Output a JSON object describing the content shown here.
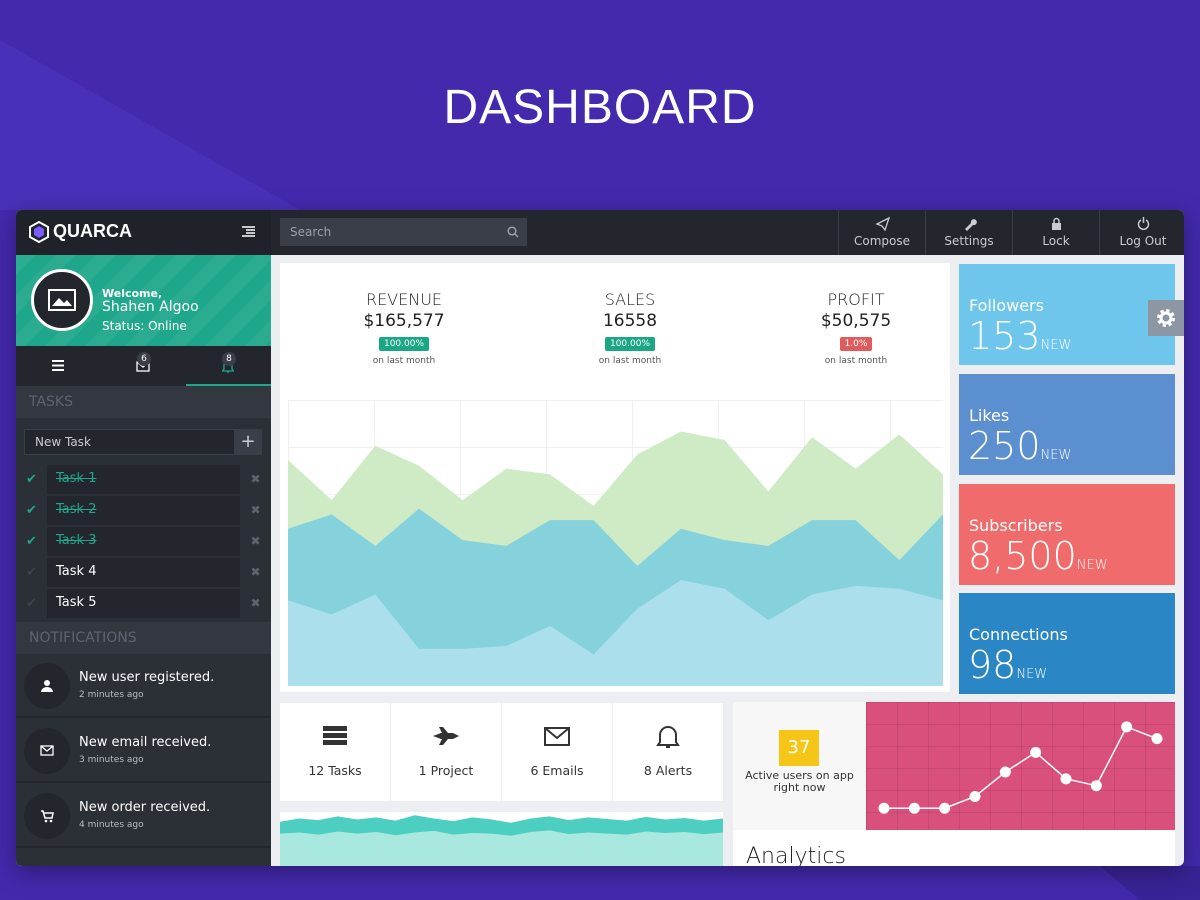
{
  "header": {
    "title": "DASHBOARD"
  },
  "brand": "QUARCA",
  "search": "Search",
  "toolbar": [
    "Compose",
    "Settings",
    "Lock",
    "Log Out"
  ],
  "profile": {
    "welcome": "Welcome,",
    "name": "Shahen Algoo",
    "status": "Status: Online"
  },
  "tab_badges": [
    "6",
    "8"
  ],
  "tasks": {
    "title": "TASKS",
    "input": "New Task",
    "add": "+",
    "remove": "✖",
    "check": "✔",
    "items": [
      {
        "label": "Task 1",
        "done": true
      },
      {
        "label": "Task 2",
        "done": true
      },
      {
        "label": "Task 3",
        "done": true
      },
      {
        "label": "Task 4",
        "done": false
      },
      {
        "label": "Task 5",
        "done": false
      }
    ]
  },
  "notifications": {
    "title": "NOTIFICATIONS",
    "items": [
      {
        "text": "New user registered.",
        "time": "2 minutes ago"
      },
      {
        "text": "New email received.",
        "time": "3 minutes ago"
      },
      {
        "text": "New order received.",
        "time": "4 minutes ago"
      }
    ]
  },
  "stats": [
    {
      "label": "REVENUE",
      "value": "$165,577",
      "change": "100.00%",
      "trend": "up",
      "note": "on last month"
    },
    {
      "label": "SALES",
      "value": "16558",
      "change": "100.00%",
      "trend": "up",
      "note": "on last month"
    },
    {
      "label": "PROFIT",
      "value": "$50,575",
      "change": "1.0%",
      "trend": "down",
      "note": "on last month"
    }
  ],
  "tiles": [
    {
      "label": "Followers",
      "value": "153",
      "suffix": "NEW",
      "color": "#6ec6ed"
    },
    {
      "label": "Likes",
      "value": "250",
      "suffix": "NEW",
      "color": "#5b8fd0"
    },
    {
      "label": "Subscribers",
      "value": "8,500",
      "suffix": "NEW",
      "color": "#f06b6b"
    },
    {
      "label": "Connections",
      "value": "98",
      "suffix": "NEW",
      "color": "#2a86c4"
    }
  ],
  "summary": [
    "12 Tasks",
    "1 Project",
    "6 Emails",
    "8 Alerts"
  ],
  "active_users": {
    "count": "37",
    "text": "Active users on app right now"
  },
  "analytics": "Analytics",
  "chart_data": [
    {
      "type": "area",
      "ylim": [
        0,
        100
      ],
      "series": [
        {
          "color": "#cfebc6",
          "values": [
            79,
            65,
            84,
            77,
            65,
            76,
            74,
            63,
            81,
            89,
            86,
            68,
            87,
            76,
            88,
            74
          ]
        },
        {
          "color": "#86d2dc",
          "values": [
            55,
            60,
            49,
            62,
            51,
            49,
            58,
            58,
            42,
            55,
            51,
            49,
            58,
            58,
            44,
            60
          ]
        },
        {
          "color": "#acdfec",
          "values": [
            30,
            25,
            32,
            13,
            13,
            14,
            21,
            11,
            27,
            37,
            34,
            23,
            32,
            35,
            34,
            30
          ]
        }
      ]
    },
    {
      "type": "line",
      "ylim": [
        0,
        100
      ],
      "color": "#ffffff",
      "values": [
        12,
        12,
        12,
        24,
        49,
        69,
        42,
        35,
        95,
        83
      ]
    },
    {
      "type": "area",
      "ylim": [
        0,
        100
      ],
      "series": [
        {
          "color": "#4ccfc0",
          "values": [
            82,
            88,
            85,
            92,
            86,
            90,
            84,
            94,
            88,
            83,
            90,
            86,
            80,
            88,
            92,
            85,
            90,
            87,
            84,
            91,
            86,
            89,
            84,
            88
          ]
        },
        {
          "color": "#a8e8df",
          "values": [
            60,
            62,
            58,
            64,
            60,
            63,
            57,
            62,
            65,
            58,
            61,
            60,
            56,
            63,
            66,
            59,
            62,
            60,
            58,
            64,
            61,
            63,
            59,
            62
          ]
        }
      ]
    }
  ]
}
